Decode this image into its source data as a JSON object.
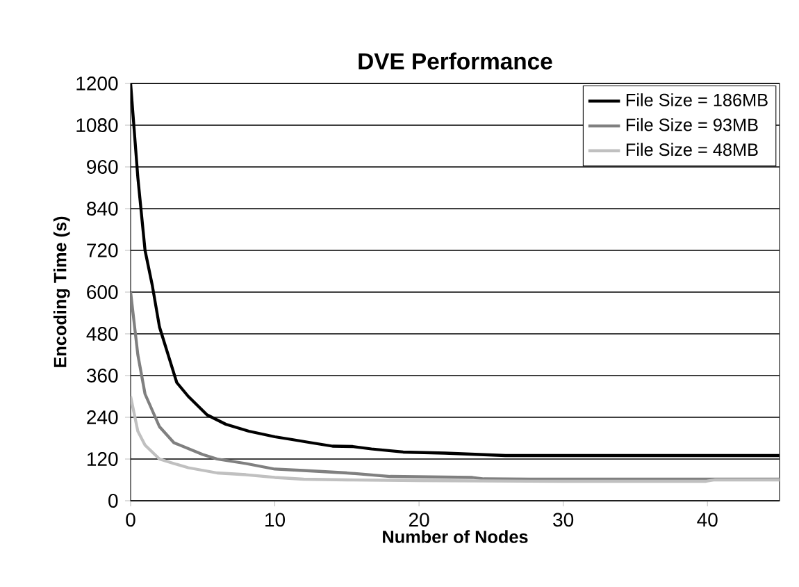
{
  "chart_data": {
    "type": "line",
    "title": "DVE Performance",
    "xlabel": "Number of Nodes",
    "ylabel": "Encoding Time (s)",
    "xlim": [
      0,
      45
    ],
    "xticks": [
      0,
      10,
      20,
      30,
      40
    ],
    "ylim": [
      0,
      1200
    ],
    "yticks": [
      0,
      120,
      240,
      360,
      480,
      600,
      720,
      840,
      960,
      1080,
      1200
    ],
    "grid": "y",
    "legend": "top right",
    "marker": "none",
    "line_style": "solid",
    "series": [
      {
        "name": "File Size = 186MB",
        "color": "#000000",
        "x": [
          0,
          0.5,
          1,
          1.5,
          2,
          3.2,
          4,
          5.3,
          6.6,
          8.2,
          10,
          11.2,
          12.5,
          14,
          15.4,
          16.7,
          18.9,
          21.8,
          26,
          30,
          40,
          45
        ],
        "values": [
          1200,
          930,
          720,
          620,
          500,
          340,
          300,
          247,
          220,
          200,
          184,
          176,
          167,
          157,
          156,
          149,
          140,
          137,
          130,
          130,
          130,
          130
        ]
      },
      {
        "name": "File Size = 93MB",
        "color": "#808080",
        "x": [
          0,
          0.5,
          1,
          2,
          3,
          4,
          5,
          6,
          8,
          10,
          12,
          15,
          18,
          23.7,
          24.5,
          30,
          40,
          45
        ],
        "values": [
          600,
          420,
          307,
          213,
          167,
          150,
          133,
          120,
          107,
          91,
          87,
          80,
          70,
          67,
          63,
          62,
          62,
          62
        ]
      },
      {
        "name": "File Size = 48MB",
        "color": "#c0c0c0",
        "x": [
          0,
          0.5,
          1,
          2,
          3,
          4,
          6,
          8,
          10,
          12,
          15,
          20,
          30,
          39.9,
          40.5,
          45
        ],
        "values": [
          300,
          200,
          160,
          120,
          107,
          95,
          80,
          75,
          67,
          62,
          60,
          58,
          56,
          56,
          60,
          60
        ]
      }
    ]
  }
}
